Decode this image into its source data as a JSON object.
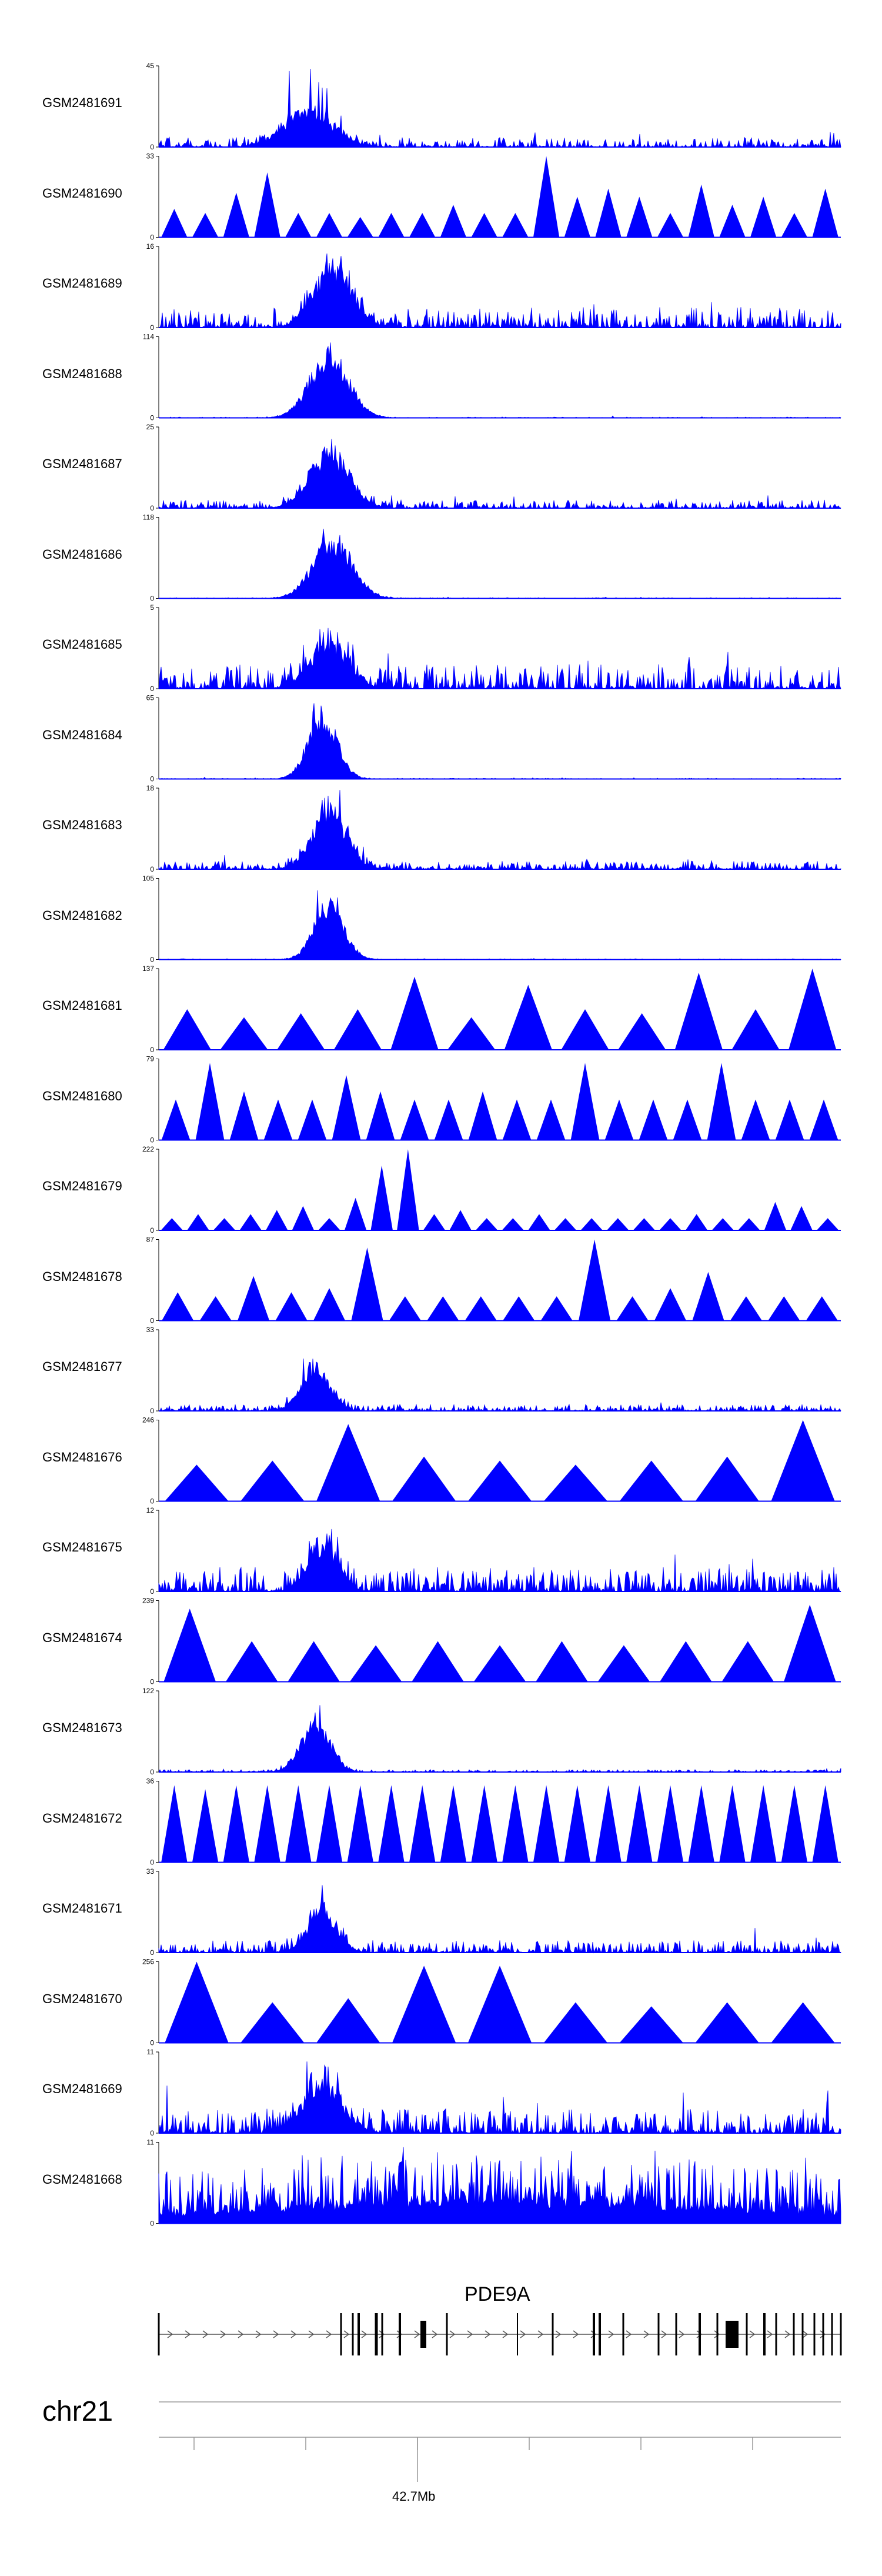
{
  "chart_data": {
    "type": "area",
    "title": "",
    "chromosome": "chr21",
    "color": "#0000ff",
    "gene": {
      "name": "PDE9A",
      "strand": "+",
      "color": "#000000"
    },
    "xaxis": {
      "labels": [
        "42.7Mb"
      ],
      "tick_count": 7
    },
    "tracks": [
      {
        "name": "GSM2481691",
        "ymax": 45,
        "style": "peaks",
        "peak_center": 0.22,
        "peak_width": 0.05,
        "peak_height": 0.5,
        "noise": 0.12,
        "spike": 1.0
      },
      {
        "name": "GSM2481690",
        "ymax": 33,
        "style": "triangles",
        "n": 22,
        "heights": [
          0.35,
          0.3,
          0.55,
          0.8,
          0.3,
          0.3,
          0.25,
          0.3,
          0.3,
          0.4,
          0.3,
          0.3,
          1.0,
          0.5,
          0.6,
          0.5,
          0.3,
          0.65,
          0.4,
          0.5,
          0.3,
          0.6
        ]
      },
      {
        "name": "GSM2481689",
        "ymax": 16,
        "style": "peaks",
        "peak_center": 0.255,
        "peak_width": 0.04,
        "peak_height": 0.85,
        "noise": 0.25,
        "spike": 1.0
      },
      {
        "name": "GSM2481688",
        "ymax": 114,
        "style": "peaks",
        "peak_center": 0.25,
        "peak_width": 0.04,
        "peak_height": 0.9,
        "noise": 0.01,
        "spike": 1.0
      },
      {
        "name": "GSM2481687",
        "ymax": 25,
        "style": "peaks",
        "peak_center": 0.25,
        "peak_width": 0.04,
        "peak_height": 0.8,
        "noise": 0.1,
        "spike": 1.0
      },
      {
        "name": "GSM2481686",
        "ymax": 118,
        "style": "peaks",
        "peak_center": 0.255,
        "peak_width": 0.04,
        "peak_height": 0.85,
        "noise": 0.01,
        "spike": 1.0
      },
      {
        "name": "GSM2481685",
        "ymax": 5,
        "style": "peaks",
        "peak_center": 0.25,
        "peak_width": 0.04,
        "peak_height": 0.6,
        "noise": 0.3,
        "spike": 0.9
      },
      {
        "name": "GSM2481684",
        "ymax": 65,
        "style": "peaks",
        "peak_center": 0.24,
        "peak_width": 0.03,
        "peak_height": 0.9,
        "noise": 0.01,
        "spike": 1.0
      },
      {
        "name": "GSM2481683",
        "ymax": 18,
        "style": "peaks",
        "peak_center": 0.25,
        "peak_width": 0.035,
        "peak_height": 0.85,
        "noise": 0.1,
        "spike": 1.0
      },
      {
        "name": "GSM2481682",
        "ymax": 105,
        "style": "peaks",
        "peak_center": 0.25,
        "peak_width": 0.03,
        "peak_height": 0.8,
        "noise": 0.01,
        "spike": 1.0
      },
      {
        "name": "GSM2481681",
        "ymax": 137,
        "style": "triangles",
        "n": 12,
        "heights": [
          0.5,
          0.4,
          0.45,
          0.5,
          0.9,
          0.4,
          0.8,
          0.5,
          0.45,
          0.95,
          0.5,
          1.0
        ]
      },
      {
        "name": "GSM2481680",
        "ymax": 79,
        "style": "triangles",
        "n": 20,
        "heights": [
          0.5,
          0.95,
          0.6,
          0.5,
          0.5,
          0.8,
          0.6,
          0.5,
          0.5,
          0.6,
          0.5,
          0.5,
          0.95,
          0.5,
          0.5,
          0.5,
          0.95,
          0.5,
          0.5,
          0.5
        ]
      },
      {
        "name": "GSM2481679",
        "ymax": 222,
        "style": "triangles",
        "n": 26,
        "heights": [
          0.15,
          0.2,
          0.15,
          0.2,
          0.25,
          0.3,
          0.15,
          0.4,
          0.8,
          1.0,
          0.2,
          0.25,
          0.15,
          0.15,
          0.2,
          0.15,
          0.15,
          0.15,
          0.15,
          0.15,
          0.2,
          0.15,
          0.15,
          0.35,
          0.3,
          0.15
        ]
      },
      {
        "name": "GSM2481678",
        "ymax": 87,
        "style": "triangles",
        "n": 18,
        "heights": [
          0.35,
          0.3,
          0.55,
          0.35,
          0.4,
          0.9,
          0.3,
          0.3,
          0.3,
          0.3,
          0.3,
          1.0,
          0.3,
          0.4,
          0.6,
          0.3,
          0.3,
          0.3
        ]
      },
      {
        "name": "GSM2481677",
        "ymax": 33,
        "style": "peaks",
        "peak_center": 0.23,
        "peak_width": 0.03,
        "peak_height": 0.6,
        "noise": 0.08,
        "spike": 0.9
      },
      {
        "name": "GSM2481676",
        "ymax": 246,
        "style": "triangles",
        "n": 9,
        "heights": [
          0.45,
          0.5,
          0.95,
          0.55,
          0.5,
          0.45,
          0.5,
          0.55,
          1.0
        ]
      },
      {
        "name": "GSM2481675",
        "ymax": 12,
        "style": "peaks",
        "peak_center": 0.24,
        "peak_width": 0.03,
        "peak_height": 0.7,
        "noise": 0.3,
        "spike": 1.0
      },
      {
        "name": "GSM2481674",
        "ymax": 239,
        "style": "triangles",
        "n": 11,
        "heights": [
          0.9,
          0.5,
          0.5,
          0.45,
          0.5,
          0.45,
          0.5,
          0.45,
          0.5,
          0.5,
          0.95
        ]
      },
      {
        "name": "GSM2481673",
        "ymax": 122,
        "style": "peaks",
        "peak_center": 0.23,
        "peak_width": 0.03,
        "peak_height": 0.7,
        "noise": 0.03,
        "spike": 1.0
      },
      {
        "name": "GSM2481672",
        "ymax": 36,
        "style": "triangles",
        "n": 22,
        "heights": [
          0.95,
          0.9,
          0.95,
          0.95,
          0.95,
          0.95,
          0.95,
          0.95,
          0.95,
          0.95,
          0.95,
          0.95,
          0.95,
          0.95,
          0.95,
          0.95,
          0.95,
          0.95,
          0.95,
          0.95,
          0.95,
          0.95
        ]
      },
      {
        "name": "GSM2481671",
        "ymax": 33,
        "style": "peaks",
        "peak_center": 0.24,
        "peak_width": 0.03,
        "peak_height": 0.6,
        "noise": 0.15,
        "spike": 1.0
      },
      {
        "name": "GSM2481670",
        "ymax": 256,
        "style": "triangles",
        "n": 9,
        "heights": [
          1.0,
          0.5,
          0.55,
          0.95,
          0.95,
          0.5,
          0.45,
          0.5,
          0.5
        ]
      },
      {
        "name": "GSM2481669",
        "ymax": 11,
        "style": "peaks",
        "peak_center": 0.24,
        "peak_width": 0.04,
        "peak_height": 0.7,
        "noise": 0.3,
        "spike": 1.0
      },
      {
        "name": "GSM2481668",
        "ymax": 11,
        "style": "peaks",
        "peak_center": 0.5,
        "peak_width": 0.5,
        "peak_height": 0.3,
        "noise": 0.55,
        "spike": 0.9
      }
    ]
  }
}
